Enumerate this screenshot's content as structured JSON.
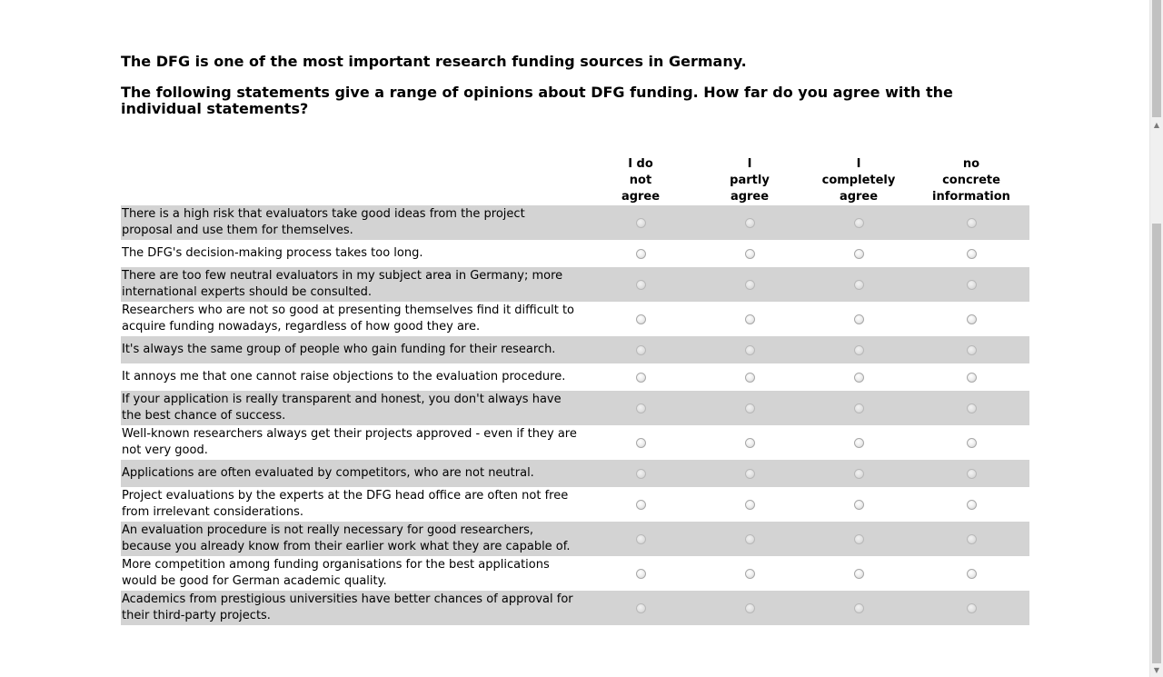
{
  "survey": {
    "intro": "The DFG is one of the most important research funding sources in Germany.",
    "question": "The following statements give a range of opinions about DFG funding. How far do you agree with the individual statements?"
  },
  "matrix": {
    "columns": [
      [
        "I do",
        "not",
        "agree"
      ],
      [
        "I",
        "partly",
        "agree"
      ],
      [
        "I",
        "completely",
        "agree"
      ],
      [
        "no",
        "concrete",
        "information"
      ]
    ],
    "statements": [
      "There is a high risk that evaluators take good ideas from the project proposal and use them for themselves.",
      "The DFG's decision-making process takes too long.",
      "There are too few neutral evaluators in my subject area in Germany; more international experts should be consulted.",
      "Researchers who are not so good at presenting themselves find it difficult to acquire funding nowadays, regardless of how good they are.",
      "It's always the same group of people who gain funding for their research.",
      "It annoys me that one cannot raise objections to the evaluation procedure.",
      "If your application is really transparent and honest, you don't always have the best chance of success.",
      "Well-known researchers always get their projects approved - even if they are not very good.",
      "Applications are often evaluated by competitors, who are not neutral.",
      "Project evaluations by the experts at the DFG head office are often not free from irrelevant considerations.",
      "An evaluation procedure is not really necessary for good researchers, because you already know from their earlier work what they are capable of.",
      "More competition among funding organisations for the best applications would be good for German academic quality.",
      "Academics from prestigious universities have better chances of approval for their third-party projects."
    ]
  },
  "colors": {
    "stripe": "#d3d3d3",
    "background": "#ffffff",
    "text": "#000000"
  }
}
